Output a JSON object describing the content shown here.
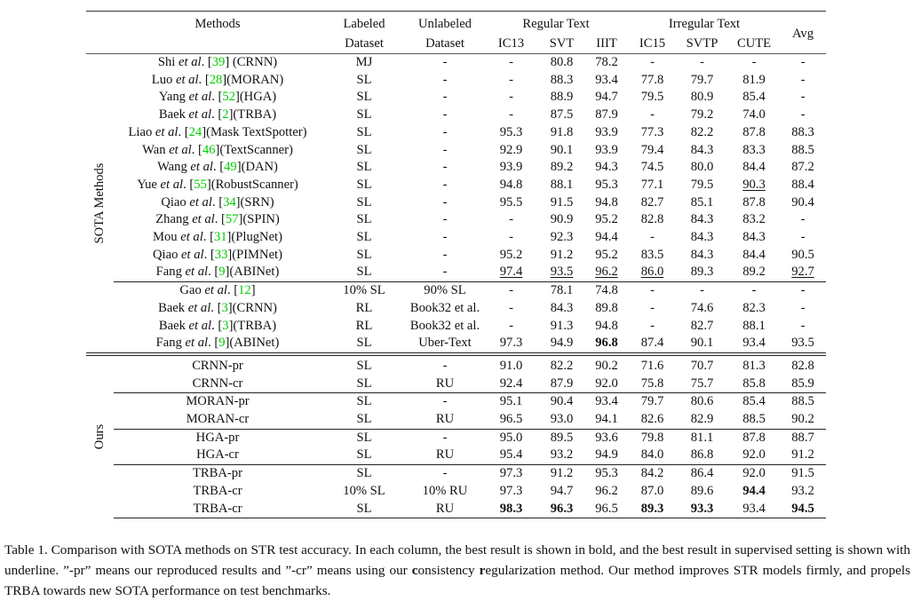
{
  "header": {
    "methods": "Methods",
    "labeled": [
      "Labeled",
      "Dataset"
    ],
    "unlabeled": [
      "Unlabeled",
      "Dataset"
    ],
    "regular": "Regular Text",
    "irregular": "Irregular Text",
    "avg": "Avg",
    "metrics": [
      "IC13",
      "SVT",
      "IIIT",
      "IC15",
      "SVTP",
      "CUTE"
    ]
  },
  "groups": [
    {
      "label": "SOTA Methods",
      "rows": [
        {
          "m": {
            "author": "Shi",
            "etal": "et al",
            "ref": "39",
            "sep": ". [",
            "model": "] (CRNN)"
          },
          "lab": "MJ",
          "unl": "-",
          "v": [
            "-",
            "80.8",
            "78.2",
            "-",
            "-",
            "-",
            "-"
          ]
        },
        {
          "m": {
            "author": "Luo",
            "etal": "et al",
            "ref": "28",
            "sep": ". [",
            "model": "](MORAN)"
          },
          "lab": "SL",
          "unl": "-",
          "v": [
            "-",
            "88.3",
            "93.4",
            "77.8",
            "79.7",
            "81.9",
            "-"
          ]
        },
        {
          "m": {
            "author": "Yang",
            "etal": "et al",
            "ref": "52",
            "sep": ". [",
            "model": "](HGA)"
          },
          "lab": "SL",
          "unl": "-",
          "v": [
            "-",
            "88.9",
            "94.7",
            "79.5",
            "80.9",
            "85.4",
            "-"
          ]
        },
        {
          "m": {
            "author": "Baek",
            "etal": "et al",
            "ref": "2",
            "sep": ". [",
            "model": "](TRBA)"
          },
          "lab": "SL",
          "unl": "-",
          "v": [
            "-",
            "87.5",
            "87.9",
            "-",
            "79.2",
            "74.0",
            "-"
          ]
        },
        {
          "m": {
            "author": "Liao",
            "etal": "et al",
            "ref": "24",
            "sep": ". [",
            "model": "](Mask TextSpotter)"
          },
          "lab": "SL",
          "unl": "-",
          "v": [
            "95.3",
            "91.8",
            "93.9",
            "77.3",
            "82.2",
            "87.8",
            "88.3"
          ]
        },
        {
          "m": {
            "author": "Wan",
            "etal": "et al",
            "ref": "46",
            "sep": ". [",
            "model": "](TextScanner)"
          },
          "lab": "SL",
          "unl": "-",
          "v": [
            "92.9",
            "90.1",
            "93.9",
            "79.4",
            "84.3",
            "83.3",
            "88.5"
          ]
        },
        {
          "m": {
            "author": "Wang",
            "etal": "et al",
            "ref": "49",
            "sep": ". [",
            "model": "](DAN)"
          },
          "lab": "SL",
          "unl": "-",
          "v": [
            "93.9",
            "89.2",
            "94.3",
            "74.5",
            "80.0",
            "84.4",
            "87.2"
          ]
        },
        {
          "m": {
            "author": "Yue",
            "etal": "et al",
            "ref": "55",
            "sep": ". [",
            "model": "](RobustScanner)"
          },
          "lab": "SL",
          "unl": "-",
          "v": [
            "94.8",
            "88.1",
            "95.3",
            "77.1",
            "79.5",
            "90.3",
            "88.4"
          ],
          "u": [
            5
          ]
        },
        {
          "m": {
            "author": "Qiao",
            "etal": "et al",
            "ref": "34",
            "sep": ". [",
            "model": "](SRN)"
          },
          "lab": "SL",
          "unl": "-",
          "v": [
            "95.5",
            "91.5",
            "94.8",
            "82.7",
            "85.1",
            "87.8",
            "90.4"
          ]
        },
        {
          "m": {
            "author": "Zhang",
            "etal": "et al",
            "ref": "57",
            "sep": ". [",
            "model": "](SPIN)"
          },
          "lab": "SL",
          "unl": "-",
          "v": [
            "-",
            "90.9",
            "95.2",
            "82.8",
            "84.3",
            "83.2",
            "-"
          ]
        },
        {
          "m": {
            "author": "Mou",
            "etal": "et al",
            "ref": "31",
            "sep": ". [",
            "model": "](PlugNet)"
          },
          "lab": "SL",
          "unl": "-",
          "v": [
            "-",
            "92.3",
            "94.4",
            "-",
            "84.3",
            "84.3",
            "-"
          ]
        },
        {
          "m": {
            "author": "Qiao",
            "etal": "et al",
            "ref": "33",
            "sep": ". [",
            "model": "](PIMNet)"
          },
          "lab": "SL",
          "unl": "-",
          "v": [
            "95.2",
            "91.2",
            "95.2",
            "83.5",
            "84.3",
            "84.4",
            "90.5"
          ]
        },
        {
          "m": {
            "author": "Fang",
            "etal": "et al",
            "ref": "9",
            "sep": ". [",
            "model": "](ABINet)"
          },
          "lab": "SL",
          "unl": "-",
          "v": [
            "97.4",
            "93.5",
            "96.2",
            "86.0",
            "89.3",
            "89.2",
            "92.7"
          ],
          "u": [
            0,
            1,
            2,
            3,
            6
          ]
        },
        {
          "sep": true,
          "m": {
            "author": "Gao",
            "etal": "et al",
            "ref": "12",
            "sep": ". [",
            "model": "]"
          },
          "lab": "10% SL",
          "unl": "90% SL",
          "v": [
            "-",
            "78.1",
            "74.8",
            "-",
            "-",
            "-",
            "-"
          ]
        },
        {
          "m": {
            "author": "Baek",
            "etal": "et al",
            "ref": "3",
            "sep": ". [",
            "model": "](CRNN)"
          },
          "lab": "RL",
          "unl": "Book32 et al.",
          "v": [
            "-",
            "84.3",
            "89.8",
            "-",
            "74.6",
            "82.3",
            "-"
          ]
        },
        {
          "m": {
            "author": "Baek",
            "etal": "et al",
            "ref": "3",
            "sep": ". [",
            "model": "](TRBA)"
          },
          "lab": "RL",
          "unl": "Book32 et al.",
          "v": [
            "-",
            "91.3",
            "94.8",
            "-",
            "82.7",
            "88.1",
            "-"
          ]
        },
        {
          "m": {
            "author": "Fang",
            "etal": "et al",
            "ref": "9",
            "sep": ". [",
            "model": "](ABINet)"
          },
          "lab": "SL",
          "unl": "Uber-Text",
          "v": [
            "97.3",
            "94.9",
            "96.8",
            "87.4",
            "90.1",
            "93.4",
            "93.5"
          ],
          "b": [
            2
          ]
        }
      ]
    },
    {
      "label": "Ours",
      "rows": [
        {
          "name": "CRNN-pr",
          "lab": "SL",
          "unl": "-",
          "v": [
            "91.0",
            "82.2",
            "90.2",
            "71.6",
            "70.7",
            "81.3",
            "82.8"
          ]
        },
        {
          "name": "CRNN-cr",
          "lab": "SL",
          "unl": "RU",
          "v": [
            "92.4",
            "87.9",
            "92.0",
            "75.8",
            "75.7",
            "85.8",
            "85.9"
          ]
        },
        {
          "sep": true,
          "name": "MORAN-pr",
          "lab": "SL",
          "unl": "-",
          "v": [
            "95.1",
            "90.4",
            "93.4",
            "79.7",
            "80.6",
            "85.4",
            "88.5"
          ]
        },
        {
          "name": "MORAN-cr",
          "lab": "SL",
          "unl": "RU",
          "v": [
            "96.5",
            "93.0",
            "94.1",
            "82.6",
            "82.9",
            "88.5",
            "90.2"
          ]
        },
        {
          "sep": true,
          "name": "HGA-pr",
          "lab": "SL",
          "unl": "-",
          "v": [
            "95.0",
            "89.5",
            "93.6",
            "79.8",
            "81.1",
            "87.8",
            "88.7"
          ]
        },
        {
          "name": "HGA-cr",
          "lab": "SL",
          "unl": "RU",
          "v": [
            "95.4",
            "93.2",
            "94.9",
            "84.0",
            "86.8",
            "92.0",
            "91.2"
          ]
        },
        {
          "sep": true,
          "name": "TRBA-pr",
          "lab": "SL",
          "unl": "-",
          "v": [
            "97.3",
            "91.2",
            "95.3",
            "84.2",
            "86.4",
            "92.0",
            "91.5"
          ]
        },
        {
          "name": "TRBA-cr",
          "lab": "10% SL",
          "unl": "10% RU",
          "v": [
            "97.3",
            "94.7",
            "96.2",
            "87.0",
            "89.6",
            "94.4",
            "93.2"
          ],
          "b": [
            5
          ]
        },
        {
          "name": "TRBA-cr",
          "lab": "SL",
          "unl": "RU",
          "v": [
            "98.3",
            "96.3",
            "96.5",
            "89.3",
            "93.3",
            "93.4",
            "94.5"
          ],
          "b": [
            0,
            1,
            3,
            4,
            6
          ]
        }
      ]
    }
  ],
  "caption": [
    {
      "t": "Table 1.  Comparison with SOTA methods on STR test accuracy.  In each column, the best result is shown in bold, and the best result in supervised setting is shown with underline. ”-pr” means our reproduced results and ”-cr” means using our "
    },
    {
      "t": "c",
      "b": true
    },
    {
      "t": "onsistency "
    },
    {
      "t": "r",
      "b": true
    },
    {
      "t": "egularization method. Our method improves STR models firmly, and propels TRBA towards new SOTA performance on test benchmarks."
    }
  ],
  "colors": {
    "reference_link": "#00cc00"
  }
}
